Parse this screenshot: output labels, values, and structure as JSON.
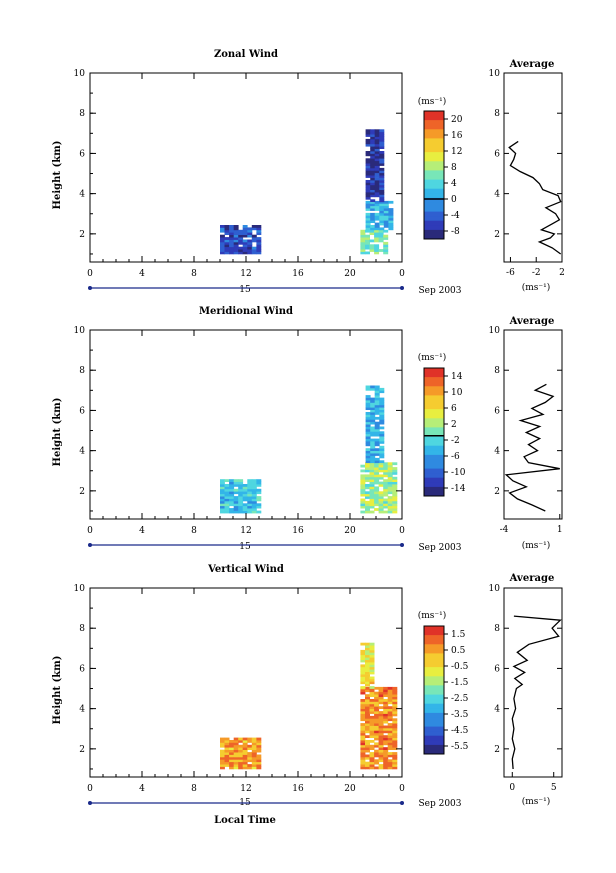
{
  "figure": {
    "xlabel_bottom": "Local Time",
    "date_label": "Sep 2003",
    "day_label": "15",
    "units_label": "(ms⁻¹)",
    "average_title": "Average"
  },
  "colorscale": [
    "#2a2a7a",
    "#2f3bb8",
    "#2f5fd0",
    "#2f8ae0",
    "#33b5e8",
    "#4fd6e0",
    "#78e6b8",
    "#b6ee78",
    "#e8ee40",
    "#f5cc30",
    "#f59a28",
    "#ee6428",
    "#e03228"
  ],
  "chart_data": [
    {
      "type": "heatmap",
      "name": "zonal",
      "title": "Zonal Wind",
      "ylabel": "Height (km)",
      "xlim": [
        0,
        24
      ],
      "ylim": [
        0.6,
        10
      ],
      "x_ticks": [
        "0",
        "4",
        "8",
        "12",
        "16",
        "20",
        "0"
      ],
      "y_ticks": [
        "2",
        "4",
        "6",
        "8",
        "10"
      ],
      "colorbar": {
        "min": -10,
        "max": 22,
        "ticks": [
          "20",
          "16",
          "12",
          "8",
          "4",
          "0",
          "-4",
          "-8"
        ],
        "zero_line": 0
      },
      "blocks": [
        {
          "x": [
            10,
            13
          ],
          "y": [
            1.0,
            2.4
          ],
          "v": -5.5,
          "seed": 1
        },
        {
          "x": [
            20.8,
            22.6
          ],
          "y": [
            1.0,
            2.2
          ],
          "v": 6,
          "seed": 2
        },
        {
          "x": [
            21.2,
            23.2
          ],
          "y": [
            2.2,
            3.6
          ],
          "v": 1,
          "seed": 3
        },
        {
          "x": [
            21.2,
            22.4
          ],
          "y": [
            3.6,
            7.2
          ],
          "v": -7,
          "seed": 4
        }
      ],
      "average": {
        "xlim": [
          -7,
          2
        ],
        "x_ticks": [
          "-6",
          "-2",
          "2"
        ],
        "y_ticks": [
          "2",
          "4",
          "6",
          "8",
          "10"
        ],
        "profile_y": [
          1.0,
          1.3,
          1.6,
          1.8,
          2.0,
          2.2,
          2.5,
          2.7,
          3.0,
          3.3,
          3.6,
          3.9,
          4.2,
          4.5,
          4.8,
          5.1,
          5.4,
          5.7,
          6.0,
          6.3,
          6.6
        ],
        "profile_x": [
          1.8,
          0.5,
          -1.5,
          0.2,
          0.8,
          -1.2,
          0.5,
          1.6,
          1.0,
          -0.5,
          1.8,
          1.4,
          -1.0,
          -1.5,
          -2.5,
          -4.5,
          -6.0,
          -5.5,
          -5.2,
          -6.2,
          -4.8
        ]
      }
    },
    {
      "type": "heatmap",
      "name": "meridional",
      "title": "Meridional Wind",
      "ylabel": "Height (km)",
      "xlim": [
        0,
        24
      ],
      "ylim": [
        0.6,
        10
      ],
      "x_ticks": [
        "0",
        "4",
        "8",
        "12",
        "16",
        "20",
        "0"
      ],
      "y_ticks": [
        "2",
        "4",
        "6",
        "8",
        "10"
      ],
      "colorbar": {
        "min": -16,
        "max": 18,
        "ticks": [
          "14",
          "10",
          "6",
          "2",
          "-2",
          "-6",
          "-10",
          "-14"
        ],
        "zero_line": 0
      },
      "blocks": [
        {
          "x": [
            10,
            13
          ],
          "y": [
            0.9,
            2.5
          ],
          "v": -3,
          "seed": 5
        },
        {
          "x": [
            20.8,
            23.6
          ],
          "y": [
            0.9,
            3.4
          ],
          "v": 3,
          "seed": 6
        },
        {
          "x": [
            21.2,
            22.4
          ],
          "y": [
            3.4,
            7.2
          ],
          "v": -4,
          "seed": 7
        }
      ],
      "average": {
        "xlim": [
          -4,
          1.2
        ],
        "x_ticks": [
          "-4",
          "1"
        ],
        "y_ticks": [
          "2",
          "4",
          "6",
          "8",
          "10"
        ],
        "profile_y": [
          1.0,
          1.3,
          1.6,
          1.9,
          2.2,
          2.5,
          2.8,
          3.1,
          3.4,
          3.7,
          4.0,
          4.3,
          4.6,
          4.9,
          5.2,
          5.5,
          5.8,
          6.1,
          6.4,
          6.7,
          7.0,
          7.3
        ],
        "profile_x": [
          -0.3,
          -1.5,
          -2.8,
          -3.5,
          -2.0,
          -3.2,
          -3.8,
          1.0,
          -1.8,
          -2.2,
          -1.0,
          -1.8,
          -0.8,
          -2.0,
          -0.8,
          -2.5,
          -0.5,
          -1.5,
          -0.3,
          0.4,
          -1.2,
          -0.2
        ]
      }
    },
    {
      "type": "heatmap",
      "name": "vertical",
      "title": "Vertical Wind",
      "ylabel": "Height (km)",
      "xlim": [
        0,
        24
      ],
      "ylim": [
        0.6,
        10
      ],
      "x_ticks": [
        "0",
        "4",
        "8",
        "12",
        "16",
        "20",
        "0"
      ],
      "y_ticks": [
        "2",
        "4",
        "6",
        "8",
        "10"
      ],
      "colorbar": {
        "min": -6.5,
        "max": 2.2,
        "ticks": [
          "1.5",
          "0.5",
          "-0.5",
          "-1.5",
          "-2.5",
          "-3.5",
          "-4.5",
          "-5.5"
        ]
      },
      "blocks": [
        {
          "x": [
            10,
            13
          ],
          "y": [
            1.0,
            2.5
          ],
          "v": 0.4,
          "seed": 8
        },
        {
          "x": [
            20.8,
            23.6
          ],
          "y": [
            1.0,
            4.6
          ],
          "v": 0.6,
          "seed": 9
        },
        {
          "x": [
            20.8,
            23.6
          ],
          "y": [
            4.6,
            5.0
          ],
          "v": 0.9,
          "seed": 10
        },
        {
          "x": [
            20.8,
            21.6
          ],
          "y": [
            5.0,
            7.2
          ],
          "v": -0.7,
          "seed": 11
        }
      ],
      "average": {
        "xlim": [
          -1,
          6
        ],
        "x_ticks": [
          "0",
          "5"
        ],
        "y_ticks": [
          "2",
          "4",
          "6",
          "8",
          "10"
        ],
        "profile_y": [
          1.0,
          1.5,
          2.0,
          2.5,
          3.0,
          3.5,
          4.0,
          4.5,
          5.0,
          5.2,
          5.5,
          5.8,
          6.1,
          6.4,
          6.8,
          7.2,
          7.6,
          8.0,
          8.4,
          8.6
        ],
        "profile_x": [
          0.1,
          0.0,
          0.3,
          0.0,
          0.2,
          0.0,
          0.4,
          0.2,
          0.5,
          1.2,
          0.3,
          1.5,
          0.2,
          1.8,
          0.6,
          2.0,
          5.6,
          4.8,
          5.8,
          0.2
        ]
      }
    }
  ]
}
